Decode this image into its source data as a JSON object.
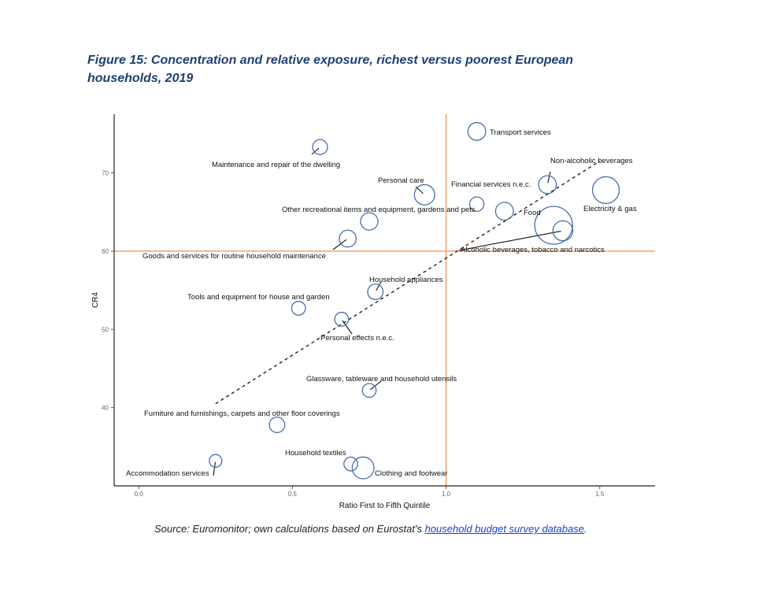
{
  "figure": {
    "title_line1": "Figure 15: Concentration and relative exposure, richest versus poorest European",
    "title_line2": "households, 2019",
    "source_prefix": "Source: Euromonitor; own calculations based on Eurostat's ",
    "source_link": "household budget survey database",
    "source_suffix": "."
  },
  "chart_data": {
    "type": "scatter",
    "title": "",
    "xlabel": "Ratio First to Fifth Quintile",
    "ylabel": "CR4",
    "xlim": [
      -0.08,
      1.68
    ],
    "ylim": [
      30,
      77.5
    ],
    "xticks": [
      0.0,
      0.5,
      1.0,
      1.5
    ],
    "xtick_labels": [
      "0.0",
      "0.5",
      "1.0",
      "1.5"
    ],
    "yticks": [
      40,
      50,
      60,
      70
    ],
    "ytick_labels": [
      "40",
      "50",
      "60",
      "70"
    ],
    "grid": false,
    "reference_lines": {
      "x": 1.0,
      "y": 60,
      "color": "#e8955a"
    },
    "trend_line": {
      "x": [
        0.25,
        1.5
      ],
      "y": [
        40.5,
        71.5
      ],
      "style": "dashed"
    },
    "marker_color": "#4a6faa",
    "points": [
      {
        "label": "Transport services",
        "x": 1.1,
        "y": 75.3,
        "size": 2.0
      },
      {
        "label": "Maintenance and repair of the dwelling",
        "x": 0.59,
        "y": 73.3,
        "size": 1.4
      },
      {
        "label": "Non-alcoholic beverages",
        "x": 1.33,
        "y": 68.5,
        "size": 2.0
      },
      {
        "label": "Financial services n.e.c.",
        "x": 1.1,
        "y": 66.0,
        "size": 1.3
      },
      {
        "label": "Personal care",
        "x": 0.93,
        "y": 67.2,
        "size": 2.6
      },
      {
        "label": "Electricity & gas",
        "x": 1.52,
        "y": 67.8,
        "size": 4.5
      },
      {
        "label": "Other recreational items and equipment, gardens and pets",
        "x": 0.75,
        "y": 63.8,
        "size": 1.9
      },
      {
        "label": "Food",
        "x": 1.35,
        "y": 63.3,
        "size": 9.0
      },
      {
        "label": "Alcoholic beverages, tobacco and narcotics",
        "x": 1.38,
        "y": 62.6,
        "size": 2.5
      },
      {
        "label": "",
        "x": 1.19,
        "y": 65.1,
        "size": 2.0
      },
      {
        "label": "Goods and services for routine household maintenance",
        "x": 0.68,
        "y": 61.6,
        "size": 1.8
      },
      {
        "label": "Household appliances",
        "x": 0.77,
        "y": 54.8,
        "size": 1.5
      },
      {
        "label": "Tools and equipment for house and garden",
        "x": 0.52,
        "y": 52.7,
        "size": 1.2
      },
      {
        "label": "Personal effects n.e.c.",
        "x": 0.66,
        "y": 51.3,
        "size": 1.2
      },
      {
        "label": "Glassware, tableware and household utensils",
        "x": 0.75,
        "y": 42.2,
        "size": 1.2
      },
      {
        "label": "Furniture and furnishings, carpets and other floor coverings",
        "x": 0.45,
        "y": 37.8,
        "size": 1.5
      },
      {
        "label": "Accommodation services",
        "x": 0.25,
        "y": 33.2,
        "size": 1.0
      },
      {
        "label": "Household textiles",
        "x": 0.69,
        "y": 32.8,
        "size": 1.2
      },
      {
        "label": "Clothing and footwear",
        "x": 0.73,
        "y": 32.3,
        "size": 3.0
      }
    ]
  }
}
